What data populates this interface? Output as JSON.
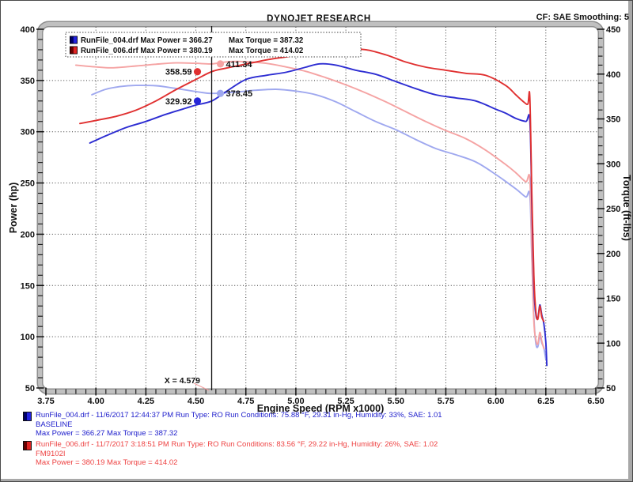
{
  "header": {
    "title": "DYNOJET RESEARCH",
    "correction_info": "CF: SAE  Smoothing: 5"
  },
  "legend_box": {
    "rows": [
      {
        "file_power": "RunFile_004.drf Max Power = 366.27",
        "torque": "Max Torque = 387.32",
        "swatch_dark": "#000066",
        "swatch_light": "#2323e0"
      },
      {
        "file_power": "RunFile_006.drf Max Power = 380.19",
        "torque": "Max Torque = 414.02",
        "swatch_dark": "#660000",
        "swatch_light": "#e02323"
      }
    ]
  },
  "chart_data": {
    "type": "line",
    "title": "DYNOJET RESEARCH",
    "xlabel": "Engine Speed (RPM x1000)",
    "ylabel_left": "Power (hp)",
    "ylabel_right": "Torque (ft-lbs)",
    "xlim": [
      3.75,
      6.5
    ],
    "ylim_left": [
      50,
      400
    ],
    "ylim_right": [
      50,
      450
    ],
    "grid": true,
    "x_major_ticks": [
      "3.75",
      "4.00",
      "4.25",
      "4.50",
      "4.75",
      "5.00",
      "5.25",
      "5.50",
      "5.75",
      "6.00",
      "6.25",
      "6.50"
    ],
    "x_minor_step": 0.05,
    "power_major_ticks": [
      "50",
      "100",
      "150",
      "200",
      "250",
      "300",
      "350",
      "400"
    ],
    "torque_major_ticks": [
      "50",
      "100",
      "150",
      "200",
      "250",
      "300",
      "350",
      "400",
      "450"
    ],
    "y_minor_step": 10,
    "runs": [
      {
        "file": "RunFile_004.drf",
        "name": "BASELINE",
        "max_power": 366.27,
        "max_torque": 387.32
      },
      {
        "file": "RunFile_006.drf",
        "name": "FM9102I",
        "max_power": 380.19,
        "max_torque": 414.02
      }
    ],
    "cursor": {
      "x": 4.579,
      "label": "X = 4.579",
      "leader_color": "#f2a0a0"
    },
    "cursor_markers": [
      {
        "label": "358.59",
        "axis": "power",
        "value": 358.59,
        "side": "left",
        "color": "#e03030"
      },
      {
        "label": "411.34",
        "axis": "torque",
        "value": 411.34,
        "side": "right",
        "color": "#f5a3a3"
      },
      {
        "label": "378.45",
        "axis": "torque",
        "value": 378.45,
        "side": "right",
        "color": "#9fa8ef"
      },
      {
        "label": "329.92",
        "axis": "power",
        "value": 329.92,
        "side": "left",
        "color": "#2626d8"
      }
    ],
    "series": [
      {
        "name": "RunFile_004 Torque",
        "axis": "torque",
        "color": "#9fa8ef",
        "points": [
          [
            3.98,
            377
          ],
          [
            4.05,
            383
          ],
          [
            4.12,
            386
          ],
          [
            4.2,
            387.32
          ],
          [
            4.3,
            387
          ],
          [
            4.4,
            384
          ],
          [
            4.5,
            380.5
          ],
          [
            4.579,
            378.45
          ],
          [
            4.7,
            380
          ],
          [
            4.8,
            382
          ],
          [
            4.9,
            383
          ],
          [
            5.0,
            381
          ],
          [
            5.1,
            377
          ],
          [
            5.2,
            369
          ],
          [
            5.3,
            358
          ],
          [
            5.4,
            347
          ],
          [
            5.5,
            338
          ],
          [
            5.6,
            327
          ],
          [
            5.7,
            317
          ],
          [
            5.8,
            310
          ],
          [
            5.9,
            302
          ],
          [
            6.0,
            288
          ],
          [
            6.1,
            272
          ],
          [
            6.15,
            263
          ],
          [
            6.17,
            265
          ],
          [
            6.18,
            195
          ],
          [
            6.19,
            130
          ],
          [
            6.2,
            100
          ],
          [
            6.21,
            96
          ],
          [
            6.22,
            108
          ],
          [
            6.23,
            100
          ],
          [
            6.24,
            95
          ],
          [
            6.25,
            82
          ]
        ]
      },
      {
        "name": "RunFile_006 Torque",
        "axis": "torque",
        "color": "#f5a3a3",
        "points": [
          [
            3.9,
            410
          ],
          [
            4.0,
            408
          ],
          [
            4.08,
            407
          ],
          [
            4.2,
            409
          ],
          [
            4.3,
            411
          ],
          [
            4.4,
            412.5
          ],
          [
            4.5,
            412
          ],
          [
            4.579,
            411.34
          ],
          [
            4.65,
            413.5
          ],
          [
            4.72,
            414.02
          ],
          [
            4.85,
            412
          ],
          [
            4.95,
            408
          ],
          [
            5.05,
            403
          ],
          [
            5.15,
            396
          ],
          [
            5.25,
            388
          ],
          [
            5.35,
            379
          ],
          [
            5.45,
            369
          ],
          [
            5.55,
            358
          ],
          [
            5.65,
            347
          ],
          [
            5.75,
            337
          ],
          [
            5.85,
            328
          ],
          [
            5.95,
            315
          ],
          [
            6.05,
            299
          ],
          [
            6.1,
            290
          ],
          [
            6.15,
            280
          ],
          [
            6.17,
            283
          ],
          [
            6.18,
            200
          ],
          [
            6.19,
            125
          ],
          [
            6.2,
            104
          ],
          [
            6.21,
            99
          ],
          [
            6.22,
            112
          ],
          [
            6.23,
            102
          ],
          [
            6.24,
            94
          ]
        ]
      },
      {
        "name": "RunFile_004 Power",
        "axis": "power",
        "color": "#2d2dd2",
        "points": [
          [
            3.97,
            289
          ],
          [
            4.05,
            296
          ],
          [
            4.15,
            304
          ],
          [
            4.25,
            310
          ],
          [
            4.35,
            317
          ],
          [
            4.45,
            323
          ],
          [
            4.5,
            326
          ],
          [
            4.579,
            329.92
          ],
          [
            4.65,
            339
          ],
          [
            4.75,
            351
          ],
          [
            4.85,
            355
          ],
          [
            4.95,
            358
          ],
          [
            5.05,
            363
          ],
          [
            5.12,
            366.27
          ],
          [
            5.2,
            365
          ],
          [
            5.3,
            360
          ],
          [
            5.4,
            356
          ],
          [
            5.5,
            349
          ],
          [
            5.6,
            342
          ],
          [
            5.7,
            336
          ],
          [
            5.8,
            333
          ],
          [
            5.9,
            330
          ],
          [
            6.0,
            322
          ],
          [
            6.05,
            318
          ],
          [
            6.1,
            313
          ],
          [
            6.15,
            310
          ],
          [
            6.17,
            311
          ],
          [
            6.18,
            230
          ],
          [
            6.19,
            150
          ],
          [
            6.2,
            122
          ],
          [
            6.21,
            118
          ],
          [
            6.22,
            131
          ],
          [
            6.23,
            121
          ],
          [
            6.24,
            113
          ],
          [
            6.25,
            95
          ],
          [
            6.255,
            72
          ]
        ]
      },
      {
        "name": "RunFile_006 Power",
        "axis": "power",
        "color": "#e03030",
        "points": [
          [
            3.92,
            308
          ],
          [
            4.0,
            311
          ],
          [
            4.1,
            315
          ],
          [
            4.2,
            321
          ],
          [
            4.3,
            330
          ],
          [
            4.4,
            341
          ],
          [
            4.5,
            351
          ],
          [
            4.579,
            358.59
          ],
          [
            4.65,
            362
          ],
          [
            4.75,
            366
          ],
          [
            4.85,
            370
          ],
          [
            4.95,
            373
          ],
          [
            5.05,
            376
          ],
          [
            5.15,
            378.5
          ],
          [
            5.25,
            380.19
          ],
          [
            5.35,
            380
          ],
          [
            5.45,
            375
          ],
          [
            5.55,
            368
          ],
          [
            5.65,
            363
          ],
          [
            5.75,
            360
          ],
          [
            5.85,
            357
          ],
          [
            5.95,
            355
          ],
          [
            6.05,
            345
          ],
          [
            6.1,
            336
          ],
          [
            6.14,
            329
          ],
          [
            6.16,
            327
          ],
          [
            6.17,
            334
          ],
          [
            6.18,
            240
          ],
          [
            6.19,
            160
          ],
          [
            6.2,
            125
          ],
          [
            6.21,
            117
          ],
          [
            6.22,
            130
          ],
          [
            6.23,
            119
          ],
          [
            6.24,
            115
          ]
        ]
      }
    ]
  },
  "bottom_legend": {
    "runs": [
      {
        "info_line": "RunFile_004.drf - 11/6/2017 12:44:37 PM  Run Type: RO  Run Conditions: 75.88 °F, 29.31 in-Hg,  Humidity:  33%, SAE: 1.01",
        "run_name": "BASELINE",
        "stats_line": "Max Power = 366.27  Max Torque = 387.32",
        "text_color": "#2020cc",
        "swatch_dark": "#000066",
        "swatch_light": "#2323e0"
      },
      {
        "info_line": "RunFile_006.drf - 11/7/2017 3:18:51 PM  Run Type: RO  Run Conditions: 83.56 °F, 29.22 in-Hg,  Humidity:  26%, SAE: 1.02",
        "run_name": "FM9102I",
        "stats_line": "Max Power = 380.19  Max Torque = 414.02",
        "text_color": "#ee4343",
        "swatch_dark": "#660000",
        "swatch_light": "#e02323"
      }
    ]
  }
}
